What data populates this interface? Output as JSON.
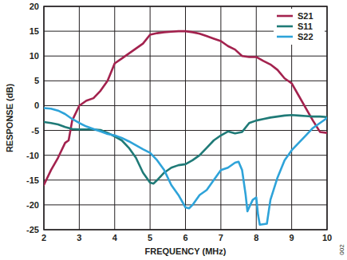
{
  "chart_data": {
    "type": "line",
    "x_label": "FREQUENCY (MHz)",
    "y_label": "RESPONSE (dB)",
    "annotation": "002",
    "xlim": [
      2,
      10
    ],
    "xticks": [
      2,
      3,
      4,
      5,
      6,
      7,
      8,
      9,
      10
    ],
    "ylim": [
      -25,
      20
    ],
    "yticks": [
      -25,
      -20,
      -15,
      -10,
      -5,
      0,
      5,
      10,
      15,
      20
    ],
    "grid": true,
    "legend": "top-right",
    "series": [
      {
        "name": "S21",
        "color": "#a3224e",
        "x": [
          2.0,
          2.2,
          2.4,
          2.6,
          2.7,
          2.8,
          3.0,
          3.2,
          3.4,
          3.6,
          3.8,
          4.0,
          4.2,
          4.4,
          4.6,
          4.8,
          5.0,
          5.2,
          5.4,
          5.6,
          5.8,
          6.0,
          6.2,
          6.4,
          6.6,
          6.8,
          7.0,
          7.2,
          7.4,
          7.6,
          7.8,
          8.0,
          8.2,
          8.4,
          8.6,
          8.8,
          9.0,
          9.2,
          9.4,
          9.6,
          9.8,
          10.0
        ],
        "values": [
          -16,
          -13,
          -10.5,
          -7.5,
          -7,
          -3,
          0,
          1,
          1.5,
          3,
          5,
          8.5,
          9.5,
          10.5,
          11.5,
          12.5,
          14.3,
          14.6,
          14.8,
          14.9,
          15,
          15,
          14.8,
          14.5,
          14,
          13.5,
          13,
          12,
          11.3,
          10,
          9.8,
          9.8,
          9,
          8.3,
          7.2,
          5.5,
          4.5,
          2,
          -0.5,
          -3,
          -5.3,
          -5.5
        ]
      },
      {
        "name": "S11",
        "color": "#1f7a77",
        "x": [
          2.0,
          2.2,
          2.4,
          2.6,
          2.8,
          3.0,
          3.2,
          3.4,
          3.6,
          3.8,
          4.0,
          4.2,
          4.4,
          4.6,
          4.8,
          5.0,
          5.1,
          5.2,
          5.4,
          5.6,
          5.8,
          6.0,
          6.2,
          6.4,
          6.6,
          6.8,
          7.0,
          7.2,
          7.4,
          7.6,
          7.8,
          8.0,
          8.2,
          8.4,
          8.6,
          8.8,
          9.0,
          9.2,
          9.4,
          9.6,
          9.8,
          10.0
        ],
        "values": [
          -3.3,
          -3.5,
          -3.8,
          -4.3,
          -4.7,
          -4.8,
          -4.8,
          -4.8,
          -4.9,
          -5.5,
          -6.2,
          -7,
          -8.5,
          -10.5,
          -13.5,
          -15.5,
          -15.7,
          -15,
          -13.5,
          -12.5,
          -12,
          -11.8,
          -11,
          -10,
          -8.5,
          -7,
          -6,
          -5.2,
          -5.6,
          -5.3,
          -3.5,
          -3,
          -2.7,
          -2.4,
          -2.2,
          -2,
          -1.9,
          -2,
          -2.1,
          -2.2,
          -2.2,
          -2.3
        ]
      },
      {
        "name": "S22",
        "color": "#2ea3d9",
        "x": [
          2.0,
          2.2,
          2.4,
          2.6,
          2.8,
          3.0,
          3.2,
          3.4,
          3.6,
          3.8,
          4.0,
          4.2,
          4.4,
          4.6,
          4.8,
          5.0,
          5.2,
          5.4,
          5.6,
          5.8,
          6.0,
          6.1,
          6.2,
          6.4,
          6.6,
          6.8,
          7.0,
          7.2,
          7.4,
          7.5,
          7.6,
          7.7,
          7.75,
          7.8,
          7.9,
          8.0,
          8.05,
          8.1,
          8.3,
          8.4,
          8.6,
          8.8,
          9.0,
          9.2,
          9.4,
          9.6,
          9.8,
          10.0
        ],
        "values": [
          -0.5,
          -0.6,
          -1,
          -1.7,
          -2.7,
          -3.5,
          -4.2,
          -4.7,
          -5.2,
          -5.7,
          -6,
          -6.5,
          -7.2,
          -8,
          -8.8,
          -9.5,
          -11,
          -13,
          -16,
          -18,
          -20.5,
          -20.7,
          -20,
          -18,
          -17,
          -15,
          -13,
          -12.5,
          -11.5,
          -11.3,
          -13,
          -18,
          -21.3,
          -20.5,
          -19,
          -18.5,
          -22,
          -24,
          -23.8,
          -19,
          -14.5,
          -11,
          -9,
          -7.5,
          -6,
          -4.5,
          -3.5,
          -2.5
        ]
      }
    ]
  }
}
